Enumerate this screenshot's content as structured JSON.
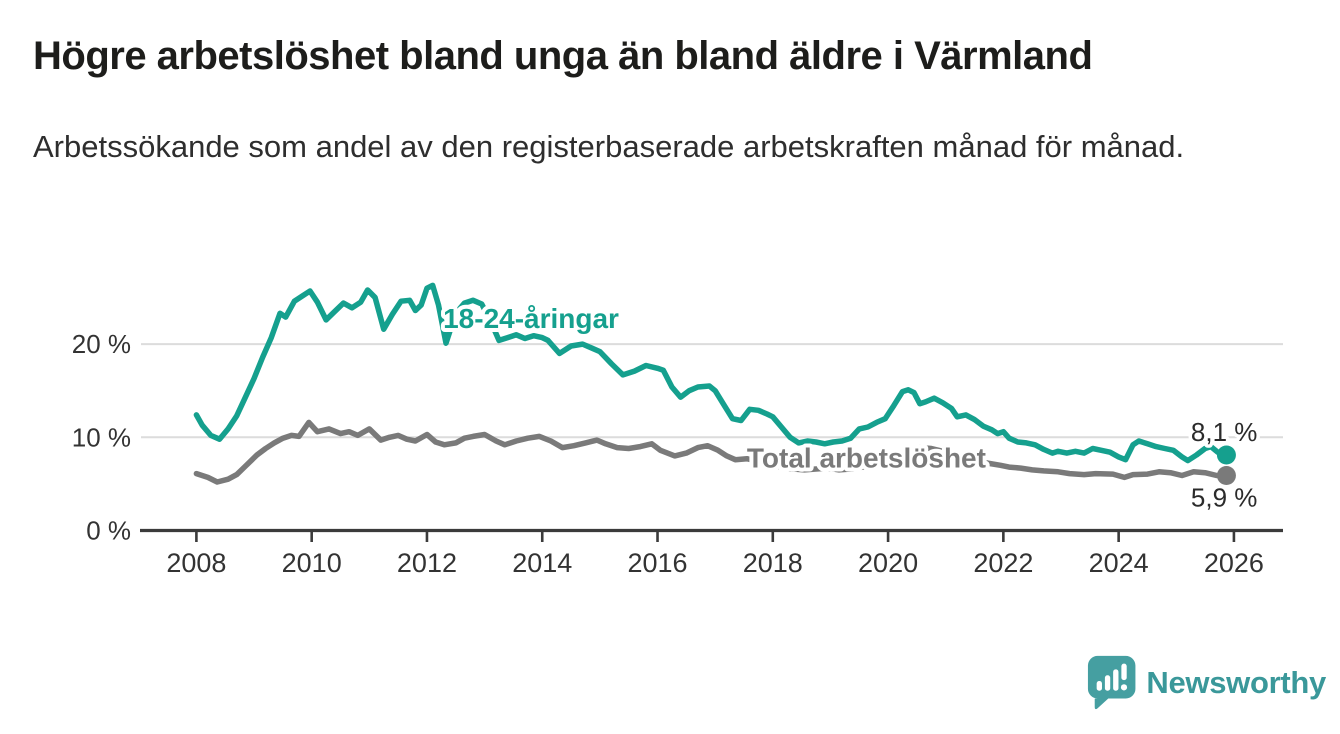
{
  "header": {
    "title": "Högre arbetslöshet bland unga än bland äldre i Värmland",
    "subtitle": "Arbetssökande som andel av den registerbaserade arbetskraften månad för månad."
  },
  "footer": {
    "brand": "Newsworthy",
    "logo_icon": "newsworthy-speech-bubble-bar-chart-icon"
  },
  "colors": {
    "teal": "#15a08e",
    "gray": "#7a7a7a",
    "axis": "#3b3b3b",
    "grid": "#dcdcdc",
    "text": "#333333",
    "value_label": "#2b2b2b",
    "title": "#1d1d1b",
    "brand_teal": "#459fa1"
  },
  "chart_data": {
    "type": "line",
    "title": "Högre arbetslöshet bland unga än bland äldre i Värmland",
    "subtitle": "Arbetssökande som andel av den registerbaserade arbetskraften månad för månad.",
    "unit": "%",
    "grid": true,
    "legend_position": "inline-labels",
    "x_axis": {
      "range": [
        2007.05,
        2026.85
      ],
      "ticks": [
        {
          "value": 2008,
          "label": "2008"
        },
        {
          "value": 2010,
          "label": "2010"
        },
        {
          "value": 2012,
          "label": "2012"
        },
        {
          "value": 2014,
          "label": "2014"
        },
        {
          "value": 2016,
          "label": "2016"
        },
        {
          "value": 2018,
          "label": "2018"
        },
        {
          "value": 2020,
          "label": "2020"
        },
        {
          "value": 2022,
          "label": "2022"
        },
        {
          "value": 2024,
          "label": "2024"
        },
        {
          "value": 2026,
          "label": "2026"
        }
      ]
    },
    "y_axis": {
      "range": [
        0,
        27.5
      ],
      "ticks": [
        {
          "value": 0,
          "label": "0 %"
        },
        {
          "value": 10,
          "label": "10 %"
        },
        {
          "value": 20,
          "label": "20 %"
        }
      ]
    },
    "annotations": [
      {
        "text": "18-24-åringar",
        "x": 2012.28,
        "y": 22.8,
        "color": "#15a08e"
      },
      {
        "text": "Total arbetslöshet",
        "x": 2017.55,
        "y": 7.85,
        "color": "#7a7a7a"
      }
    ],
    "series": [
      {
        "name": "18-24-åringar",
        "color": "#15a08e",
        "end_value": 8.1,
        "end_label": "8,1 %",
        "points": [
          [
            2008.0,
            12.4
          ],
          [
            2008.1,
            11.3
          ],
          [
            2008.25,
            10.2
          ],
          [
            2008.4,
            9.8
          ],
          [
            2008.55,
            10.9
          ],
          [
            2008.7,
            12.3
          ],
          [
            2008.85,
            14.3
          ],
          [
            2009.0,
            16.3
          ],
          [
            2009.15,
            18.6
          ],
          [
            2009.3,
            20.7
          ],
          [
            2009.45,
            23.3
          ],
          [
            2009.55,
            22.9
          ],
          [
            2009.7,
            24.6
          ],
          [
            2009.85,
            25.2
          ],
          [
            2009.97,
            25.7
          ],
          [
            2010.1,
            24.5
          ],
          [
            2010.25,
            22.6
          ],
          [
            2010.4,
            23.5
          ],
          [
            2010.55,
            24.4
          ],
          [
            2010.7,
            23.9
          ],
          [
            2010.85,
            24.5
          ],
          [
            2010.97,
            25.8
          ],
          [
            2011.1,
            25.0
          ],
          [
            2011.25,
            21.6
          ],
          [
            2011.4,
            23.2
          ],
          [
            2011.55,
            24.6
          ],
          [
            2011.7,
            24.7
          ],
          [
            2011.8,
            23.6
          ],
          [
            2011.9,
            24.2
          ],
          [
            2012.0,
            26.0
          ],
          [
            2012.1,
            26.3
          ],
          [
            2012.2,
            24.2
          ],
          [
            2012.33,
            20.1
          ],
          [
            2012.5,
            23.3
          ],
          [
            2012.65,
            24.4
          ],
          [
            2012.8,
            24.7
          ],
          [
            2012.95,
            24.3
          ],
          [
            2013.1,
            22.5
          ],
          [
            2013.25,
            20.4
          ],
          [
            2013.4,
            20.7
          ],
          [
            2013.55,
            21.0
          ],
          [
            2013.7,
            20.6
          ],
          [
            2013.85,
            20.9
          ],
          [
            2014.0,
            20.7
          ],
          [
            2014.1,
            20.4
          ],
          [
            2014.3,
            19.0
          ],
          [
            2014.5,
            19.8
          ],
          [
            2014.7,
            20.0
          ],
          [
            2014.85,
            19.6
          ],
          [
            2015.0,
            19.2
          ],
          [
            2015.2,
            17.9
          ],
          [
            2015.4,
            16.7
          ],
          [
            2015.6,
            17.1
          ],
          [
            2015.8,
            17.7
          ],
          [
            2016.0,
            17.4
          ],
          [
            2016.1,
            17.2
          ],
          [
            2016.25,
            15.4
          ],
          [
            2016.4,
            14.3
          ],
          [
            2016.55,
            15.0
          ],
          [
            2016.7,
            15.4
          ],
          [
            2016.9,
            15.5
          ],
          [
            2017.0,
            15.0
          ],
          [
            2017.15,
            13.5
          ],
          [
            2017.3,
            12.0
          ],
          [
            2017.45,
            11.8
          ],
          [
            2017.6,
            13.0
          ],
          [
            2017.75,
            12.9
          ],
          [
            2017.9,
            12.5
          ],
          [
            2018.0,
            12.2
          ],
          [
            2018.15,
            11.1
          ],
          [
            2018.3,
            10.0
          ],
          [
            2018.45,
            9.4
          ],
          [
            2018.6,
            9.6
          ],
          [
            2018.75,
            9.5
          ],
          [
            2018.9,
            9.3
          ],
          [
            2019.05,
            9.5
          ],
          [
            2019.2,
            9.6
          ],
          [
            2019.35,
            9.9
          ],
          [
            2019.5,
            10.9
          ],
          [
            2019.65,
            11.1
          ],
          [
            2019.8,
            11.6
          ],
          [
            2019.95,
            12.0
          ],
          [
            2020.1,
            13.4
          ],
          [
            2020.25,
            14.9
          ],
          [
            2020.35,
            15.1
          ],
          [
            2020.45,
            14.8
          ],
          [
            2020.55,
            13.6
          ],
          [
            2020.65,
            13.8
          ],
          [
            2020.8,
            14.2
          ],
          [
            2020.95,
            13.7
          ],
          [
            2021.1,
            13.1
          ],
          [
            2021.2,
            12.2
          ],
          [
            2021.35,
            12.4
          ],
          [
            2021.5,
            11.9
          ],
          [
            2021.65,
            11.2
          ],
          [
            2021.8,
            10.8
          ],
          [
            2021.9,
            10.4
          ],
          [
            2022.0,
            10.6
          ],
          [
            2022.1,
            9.9
          ],
          [
            2022.25,
            9.5
          ],
          [
            2022.4,
            9.4
          ],
          [
            2022.55,
            9.2
          ],
          [
            2022.7,
            8.7
          ],
          [
            2022.85,
            8.3
          ],
          [
            2022.95,
            8.5
          ],
          [
            2023.1,
            8.3
          ],
          [
            2023.25,
            8.5
          ],
          [
            2023.4,
            8.3
          ],
          [
            2023.55,
            8.8
          ],
          [
            2023.7,
            8.6
          ],
          [
            2023.85,
            8.4
          ],
          [
            2024.0,
            7.9
          ],
          [
            2024.12,
            7.6
          ],
          [
            2024.25,
            9.2
          ],
          [
            2024.35,
            9.6
          ],
          [
            2024.5,
            9.3
          ],
          [
            2024.65,
            9.0
          ],
          [
            2024.8,
            8.8
          ],
          [
            2024.95,
            8.6
          ],
          [
            2025.1,
            7.9
          ],
          [
            2025.2,
            7.5
          ],
          [
            2025.35,
            8.1
          ],
          [
            2025.5,
            8.8
          ],
          [
            2025.6,
            9.0
          ],
          [
            2025.72,
            8.4
          ],
          [
            2025.87,
            8.1
          ]
        ]
      },
      {
        "name": "Total arbetslöshet",
        "color": "#7a7a7a",
        "end_value": 5.9,
        "end_label": "5,9 %",
        "points": [
          [
            2008.0,
            6.1
          ],
          [
            2008.2,
            5.7
          ],
          [
            2008.36,
            5.2
          ],
          [
            2008.55,
            5.5
          ],
          [
            2008.7,
            6.0
          ],
          [
            2008.85,
            6.9
          ],
          [
            2009.05,
            8.1
          ],
          [
            2009.2,
            8.8
          ],
          [
            2009.35,
            9.4
          ],
          [
            2009.5,
            9.9
          ],
          [
            2009.65,
            10.2
          ],
          [
            2009.78,
            10.1
          ],
          [
            2009.95,
            11.6
          ],
          [
            2010.1,
            10.6
          ],
          [
            2010.3,
            10.9
          ],
          [
            2010.5,
            10.4
          ],
          [
            2010.65,
            10.6
          ],
          [
            2010.8,
            10.2
          ],
          [
            2011.0,
            10.9
          ],
          [
            2011.2,
            9.7
          ],
          [
            2011.35,
            10.0
          ],
          [
            2011.5,
            10.2
          ],
          [
            2011.65,
            9.8
          ],
          [
            2011.8,
            9.6
          ],
          [
            2012.0,
            10.3
          ],
          [
            2012.15,
            9.5
          ],
          [
            2012.3,
            9.2
          ],
          [
            2012.5,
            9.4
          ],
          [
            2012.65,
            9.9
          ],
          [
            2012.8,
            10.1
          ],
          [
            2013.0,
            10.3
          ],
          [
            2013.2,
            9.6
          ],
          [
            2013.35,
            9.2
          ],
          [
            2013.55,
            9.6
          ],
          [
            2013.75,
            9.9
          ],
          [
            2013.95,
            10.1
          ],
          [
            2014.15,
            9.6
          ],
          [
            2014.35,
            8.9
          ],
          [
            2014.55,
            9.1
          ],
          [
            2014.75,
            9.4
          ],
          [
            2014.95,
            9.7
          ],
          [
            2015.1,
            9.3
          ],
          [
            2015.3,
            8.9
          ],
          [
            2015.5,
            8.8
          ],
          [
            2015.7,
            9.0
          ],
          [
            2015.9,
            9.3
          ],
          [
            2016.05,
            8.6
          ],
          [
            2016.3,
            8.0
          ],
          [
            2016.5,
            8.3
          ],
          [
            2016.7,
            8.9
          ],
          [
            2016.87,
            9.1
          ],
          [
            2017.05,
            8.6
          ],
          [
            2017.2,
            8.0
          ],
          [
            2017.35,
            7.6
          ],
          [
            2017.55,
            7.7
          ],
          [
            2017.75,
            7.4
          ],
          [
            2017.95,
            7.1
          ],
          [
            2018.15,
            6.8
          ],
          [
            2018.35,
            6.6
          ],
          [
            2018.55,
            6.5
          ],
          [
            2018.75,
            6.6
          ],
          [
            2018.95,
            6.7
          ],
          [
            2019.15,
            6.5
          ],
          [
            2019.35,
            6.6
          ],
          [
            2019.55,
            6.8
          ],
          [
            2019.75,
            6.9
          ],
          [
            2019.95,
            7.2
          ],
          [
            2020.15,
            7.8
          ],
          [
            2020.35,
            8.5
          ],
          [
            2020.55,
            8.9
          ],
          [
            2020.75,
            8.8
          ],
          [
            2020.95,
            8.5
          ],
          [
            2021.15,
            8.1
          ],
          [
            2021.35,
            7.8
          ],
          [
            2021.55,
            7.5
          ],
          [
            2021.75,
            7.2
          ],
          [
            2021.95,
            7.0
          ],
          [
            2022.1,
            6.8
          ],
          [
            2022.3,
            6.7
          ],
          [
            2022.5,
            6.5
          ],
          [
            2022.7,
            6.4
          ],
          [
            2022.95,
            6.3
          ],
          [
            2023.15,
            6.1
          ],
          [
            2023.4,
            6.0
          ],
          [
            2023.6,
            6.1
          ],
          [
            2023.9,
            6.05
          ],
          [
            2024.1,
            5.7
          ],
          [
            2024.25,
            6.0
          ],
          [
            2024.5,
            6.05
          ],
          [
            2024.7,
            6.3
          ],
          [
            2024.9,
            6.2
          ],
          [
            2025.1,
            5.9
          ],
          [
            2025.3,
            6.3
          ],
          [
            2025.5,
            6.2
          ],
          [
            2025.7,
            5.9
          ],
          [
            2025.87,
            5.9
          ]
        ]
      }
    ]
  }
}
